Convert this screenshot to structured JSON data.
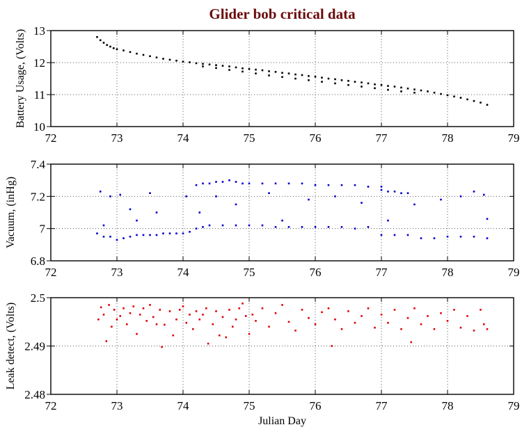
{
  "chart_data": [
    {
      "type": "scatter",
      "title": "Glider bob critical data",
      "xlabel": "",
      "ylabel": "Battery Usage, (Volts)",
      "xlim": [
        72,
        79
      ],
      "ylim": [
        10,
        13
      ],
      "xticks": [
        "72",
        "73",
        "74",
        "75",
        "76",
        "77",
        "78",
        "79"
      ],
      "yticks": [
        "10",
        "11",
        "12",
        "13"
      ],
      "grid": true,
      "color": "#000000",
      "points": [
        [
          72.7,
          12.8
        ],
        [
          72.75,
          12.7
        ],
        [
          72.8,
          12.62
        ],
        [
          72.85,
          12.55
        ],
        [
          72.9,
          12.5
        ],
        [
          72.95,
          12.45
        ],
        [
          73.0,
          12.42
        ],
        [
          73.1,
          12.38
        ],
        [
          73.2,
          12.33
        ],
        [
          73.3,
          12.28
        ],
        [
          73.4,
          12.24
        ],
        [
          73.5,
          12.2
        ],
        [
          73.6,
          12.16
        ],
        [
          73.7,
          12.12
        ],
        [
          73.8,
          12.09
        ],
        [
          73.9,
          12.06
        ],
        [
          74.0,
          12.03
        ],
        [
          74.1,
          12.01
        ],
        [
          74.2,
          11.98
        ],
        [
          74.3,
          11.96
        ],
        [
          74.4,
          11.94
        ],
        [
          74.5,
          11.92
        ],
        [
          74.6,
          11.9
        ],
        [
          74.7,
          11.88
        ],
        [
          74.8,
          11.85
        ],
        [
          74.9,
          11.82
        ],
        [
          75.0,
          11.8
        ],
        [
          75.1,
          11.78
        ],
        [
          75.2,
          11.76
        ],
        [
          75.3,
          11.73
        ],
        [
          75.4,
          11.71
        ],
        [
          75.5,
          11.68
        ],
        [
          75.6,
          11.66
        ],
        [
          75.7,
          11.63
        ],
        [
          75.8,
          11.61
        ],
        [
          75.9,
          11.58
        ],
        [
          76.0,
          11.56
        ],
        [
          76.1,
          11.53
        ],
        [
          76.2,
          11.5
        ],
        [
          76.3,
          11.48
        ],
        [
          76.4,
          11.45
        ],
        [
          76.5,
          11.43
        ],
        [
          76.6,
          11.4
        ],
        [
          76.7,
          11.38
        ],
        [
          76.8,
          11.35
        ],
        [
          76.9,
          11.32
        ],
        [
          77.0,
          11.3
        ],
        [
          77.1,
          11.27
        ],
        [
          77.2,
          11.25
        ],
        [
          77.3,
          11.22
        ],
        [
          77.4,
          11.19
        ],
        [
          77.5,
          11.16
        ],
        [
          77.6,
          11.13
        ],
        [
          77.7,
          11.1
        ],
        [
          77.8,
          11.06
        ],
        [
          77.9,
          11.02
        ],
        [
          78.0,
          10.98
        ],
        [
          78.1,
          10.94
        ],
        [
          78.2,
          10.9
        ],
        [
          78.3,
          10.85
        ],
        [
          78.4,
          10.8
        ],
        [
          78.5,
          10.75
        ],
        [
          78.6,
          10.68
        ],
        [
          74.3,
          11.88
        ],
        [
          74.5,
          11.83
        ],
        [
          74.7,
          11.77
        ],
        [
          74.9,
          11.72
        ],
        [
          75.1,
          11.66
        ],
        [
          75.3,
          11.6
        ],
        [
          75.5,
          11.55
        ],
        [
          75.7,
          11.5
        ],
        [
          75.9,
          11.45
        ],
        [
          76.1,
          11.4
        ],
        [
          76.3,
          11.35
        ],
        [
          76.5,
          11.3
        ],
        [
          76.7,
          11.25
        ],
        [
          76.9,
          11.2
        ],
        [
          77.1,
          11.15
        ],
        [
          77.3,
          11.1
        ],
        [
          77.5,
          11.06
        ]
      ]
    },
    {
      "type": "scatter",
      "xlabel": "",
      "ylabel": "Vacuum, (inHg)",
      "xlim": [
        72,
        79
      ],
      "ylim": [
        6.8,
        7.4
      ],
      "xticks": [
        "72",
        "73",
        "74",
        "75",
        "76",
        "77",
        "78",
        "79"
      ],
      "yticks": [
        "6.8",
        "7",
        "7.2",
        "7.4"
      ],
      "grid": true,
      "color": "#0000cc",
      "points": [
        [
          72.7,
          6.97
        ],
        [
          72.8,
          6.95
        ],
        [
          72.9,
          6.95
        ],
        [
          73.0,
          6.93
        ],
        [
          73.1,
          6.94
        ],
        [
          73.2,
          6.95
        ],
        [
          73.3,
          6.96
        ],
        [
          73.4,
          6.96
        ],
        [
          73.5,
          6.96
        ],
        [
          73.6,
          6.96
        ],
        [
          73.7,
          6.97
        ],
        [
          73.8,
          6.97
        ],
        [
          73.9,
          6.97
        ],
        [
          74.0,
          6.97
        ],
        [
          74.1,
          6.98
        ],
        [
          72.75,
          7.23
        ],
        [
          72.8,
          7.02
        ],
        [
          72.9,
          7.2
        ],
        [
          73.05,
          7.21
        ],
        [
          73.2,
          7.12
        ],
        [
          73.3,
          7.05
        ],
        [
          73.5,
          7.22
        ],
        [
          73.6,
          7.1
        ],
        [
          74.05,
          7.2
        ],
        [
          74.2,
          7.27
        ],
        [
          74.3,
          7.28
        ],
        [
          74.4,
          7.28
        ],
        [
          74.5,
          7.29
        ],
        [
          74.6,
          7.29
        ],
        [
          74.7,
          7.3
        ],
        [
          74.8,
          7.29
        ],
        [
          74.9,
          7.28
        ],
        [
          75.0,
          7.28
        ],
        [
          75.2,
          7.28
        ],
        [
          75.4,
          7.28
        ],
        [
          75.6,
          7.28
        ],
        [
          75.8,
          7.28
        ],
        [
          76.0,
          7.27
        ],
        [
          76.2,
          7.27
        ],
        [
          76.4,
          7.27
        ],
        [
          76.6,
          7.27
        ],
        [
          76.8,
          7.26
        ],
        [
          77.0,
          7.26
        ],
        [
          74.2,
          7.0
        ],
        [
          74.3,
          7.01
        ],
        [
          74.4,
          7.02
        ],
        [
          74.6,
          7.02
        ],
        [
          74.8,
          7.02
        ],
        [
          75.0,
          7.02
        ],
        [
          75.2,
          7.02
        ],
        [
          75.4,
          7.01
        ],
        [
          75.6,
          7.01
        ],
        [
          75.8,
          7.01
        ],
        [
          76.0,
          7.01
        ],
        [
          76.2,
          7.01
        ],
        [
          76.4,
          7.01
        ],
        [
          76.6,
          7.0
        ],
        [
          76.8,
          7.01
        ],
        [
          74.25,
          7.1
        ],
        [
          74.5,
          7.2
        ],
        [
          74.8,
          7.15
        ],
        [
          75.3,
          7.22
        ],
        [
          75.5,
          7.05
        ],
        [
          75.9,
          7.18
        ],
        [
          76.3,
          7.2
        ],
        [
          76.7,
          7.16
        ],
        [
          77.0,
          7.24
        ],
        [
          77.1,
          7.23
        ],
        [
          77.2,
          7.23
        ],
        [
          77.3,
          7.22
        ],
        [
          77.4,
          7.22
        ],
        [
          77.0,
          6.96
        ],
        [
          77.2,
          6.96
        ],
        [
          77.4,
          6.96
        ],
        [
          77.6,
          6.94
        ],
        [
          77.8,
          6.94
        ],
        [
          78.0,
          6.95
        ],
        [
          78.2,
          6.95
        ],
        [
          78.4,
          6.95
        ],
        [
          78.6,
          6.94
        ],
        [
          77.5,
          7.15
        ],
        [
          77.9,
          7.18
        ],
        [
          78.2,
          7.2
        ],
        [
          78.4,
          7.23
        ],
        [
          78.55,
          7.21
        ],
        [
          78.6,
          7.06
        ],
        [
          77.1,
          7.05
        ]
      ]
    },
    {
      "type": "scatter",
      "xlabel": "Julian Day",
      "ylabel": "Leak detect, (Volts)",
      "xlim": [
        72,
        79
      ],
      "ylim": [
        2.48,
        2.5
      ],
      "xticks": [
        "72",
        "73",
        "74",
        "75",
        "76",
        "77",
        "78",
        "79"
      ],
      "yticks": [
        "2.48",
        "2.49",
        "2.5"
      ],
      "grid": true,
      "color": "#dd0000",
      "points": [
        [
          72.72,
          2.4955
        ],
        [
          72.76,
          2.498
        ],
        [
          72.8,
          2.4965
        ],
        [
          72.84,
          2.491
        ],
        [
          72.88,
          2.4985
        ],
        [
          72.92,
          2.494
        ],
        [
          72.96,
          2.4975
        ],
        [
          73.0,
          2.4955
        ],
        [
          73.05,
          2.4962
        ],
        [
          73.1,
          2.4978
        ],
        [
          73.15,
          2.4945
        ],
        [
          73.2,
          2.4968
        ],
        [
          73.25,
          2.4982
        ],
        [
          73.3,
          2.4925
        ],
        [
          73.35,
          2.4965
        ],
        [
          73.4,
          2.4978
        ],
        [
          73.45,
          2.4952
        ],
        [
          73.5,
          2.4985
        ],
        [
          73.55,
          2.496
        ],
        [
          73.6,
          2.4945
        ],
        [
          73.65,
          2.4975
        ],
        [
          73.68,
          2.4898
        ],
        [
          73.72,
          2.4944
        ],
        [
          73.8,
          2.4972
        ],
        [
          73.85,
          2.4922
        ],
        [
          73.9,
          2.4955
        ],
        [
          73.95,
          2.4975
        ],
        [
          74.0,
          2.4982
        ],
        [
          74.05,
          2.4948
        ],
        [
          74.1,
          2.4965
        ],
        [
          74.15,
          2.4935
        ],
        [
          74.2,
          2.4972
        ],
        [
          74.25,
          2.4955
        ],
        [
          74.3,
          2.4965
        ],
        [
          74.35,
          2.4978
        ],
        [
          74.38,
          2.4905
        ],
        [
          74.45,
          2.4945
        ],
        [
          74.5,
          2.4972
        ],
        [
          74.55,
          2.4922
        ],
        [
          74.6,
          2.496
        ],
        [
          74.65,
          2.4918
        ],
        [
          74.7,
          2.4975
        ],
        [
          74.75,
          2.494
        ],
        [
          74.8,
          2.4955
        ],
        [
          74.85,
          2.4978
        ],
        [
          74.9,
          2.4988
        ],
        [
          74.95,
          2.4962
        ],
        [
          75.0,
          2.4925
        ],
        [
          75.05,
          2.4965
        ],
        [
          75.1,
          2.4952
        ],
        [
          75.2,
          2.4978
        ],
        [
          75.3,
          2.494
        ],
        [
          75.4,
          2.4968
        ],
        [
          75.5,
          2.4985
        ],
        [
          75.6,
          2.495
        ],
        [
          75.7,
          2.4932
        ],
        [
          75.8,
          2.4975
        ],
        [
          75.9,
          2.4958
        ],
        [
          76.0,
          2.4945
        ],
        [
          76.1,
          2.497
        ],
        [
          76.2,
          2.4978
        ],
        [
          76.25,
          2.49
        ],
        [
          76.3,
          2.4955
        ],
        [
          76.4,
          2.4935
        ],
        [
          76.5,
          2.4972
        ],
        [
          76.6,
          2.4948
        ],
        [
          76.7,
          2.4962
        ],
        [
          76.8,
          2.4978
        ],
        [
          76.9,
          2.4938
        ],
        [
          77.0,
          2.4965
        ],
        [
          77.1,
          2.4948
        ],
        [
          77.2,
          2.4975
        ],
        [
          77.3,
          2.4935
        ],
        [
          77.4,
          2.4958
        ],
        [
          77.45,
          2.4908
        ],
        [
          77.5,
          2.4978
        ],
        [
          77.6,
          2.4945
        ],
        [
          77.7,
          2.4962
        ],
        [
          77.8,
          2.4935
        ],
        [
          77.9,
          2.4968
        ],
        [
          78.0,
          2.4952
        ],
        [
          78.1,
          2.4975
        ],
        [
          78.2,
          2.4938
        ],
        [
          78.3,
          2.4962
        ],
        [
          78.4,
          2.4932
        ],
        [
          78.5,
          2.4975
        ],
        [
          78.55,
          2.4945
        ],
        [
          78.6,
          2.4935
        ]
      ]
    }
  ]
}
